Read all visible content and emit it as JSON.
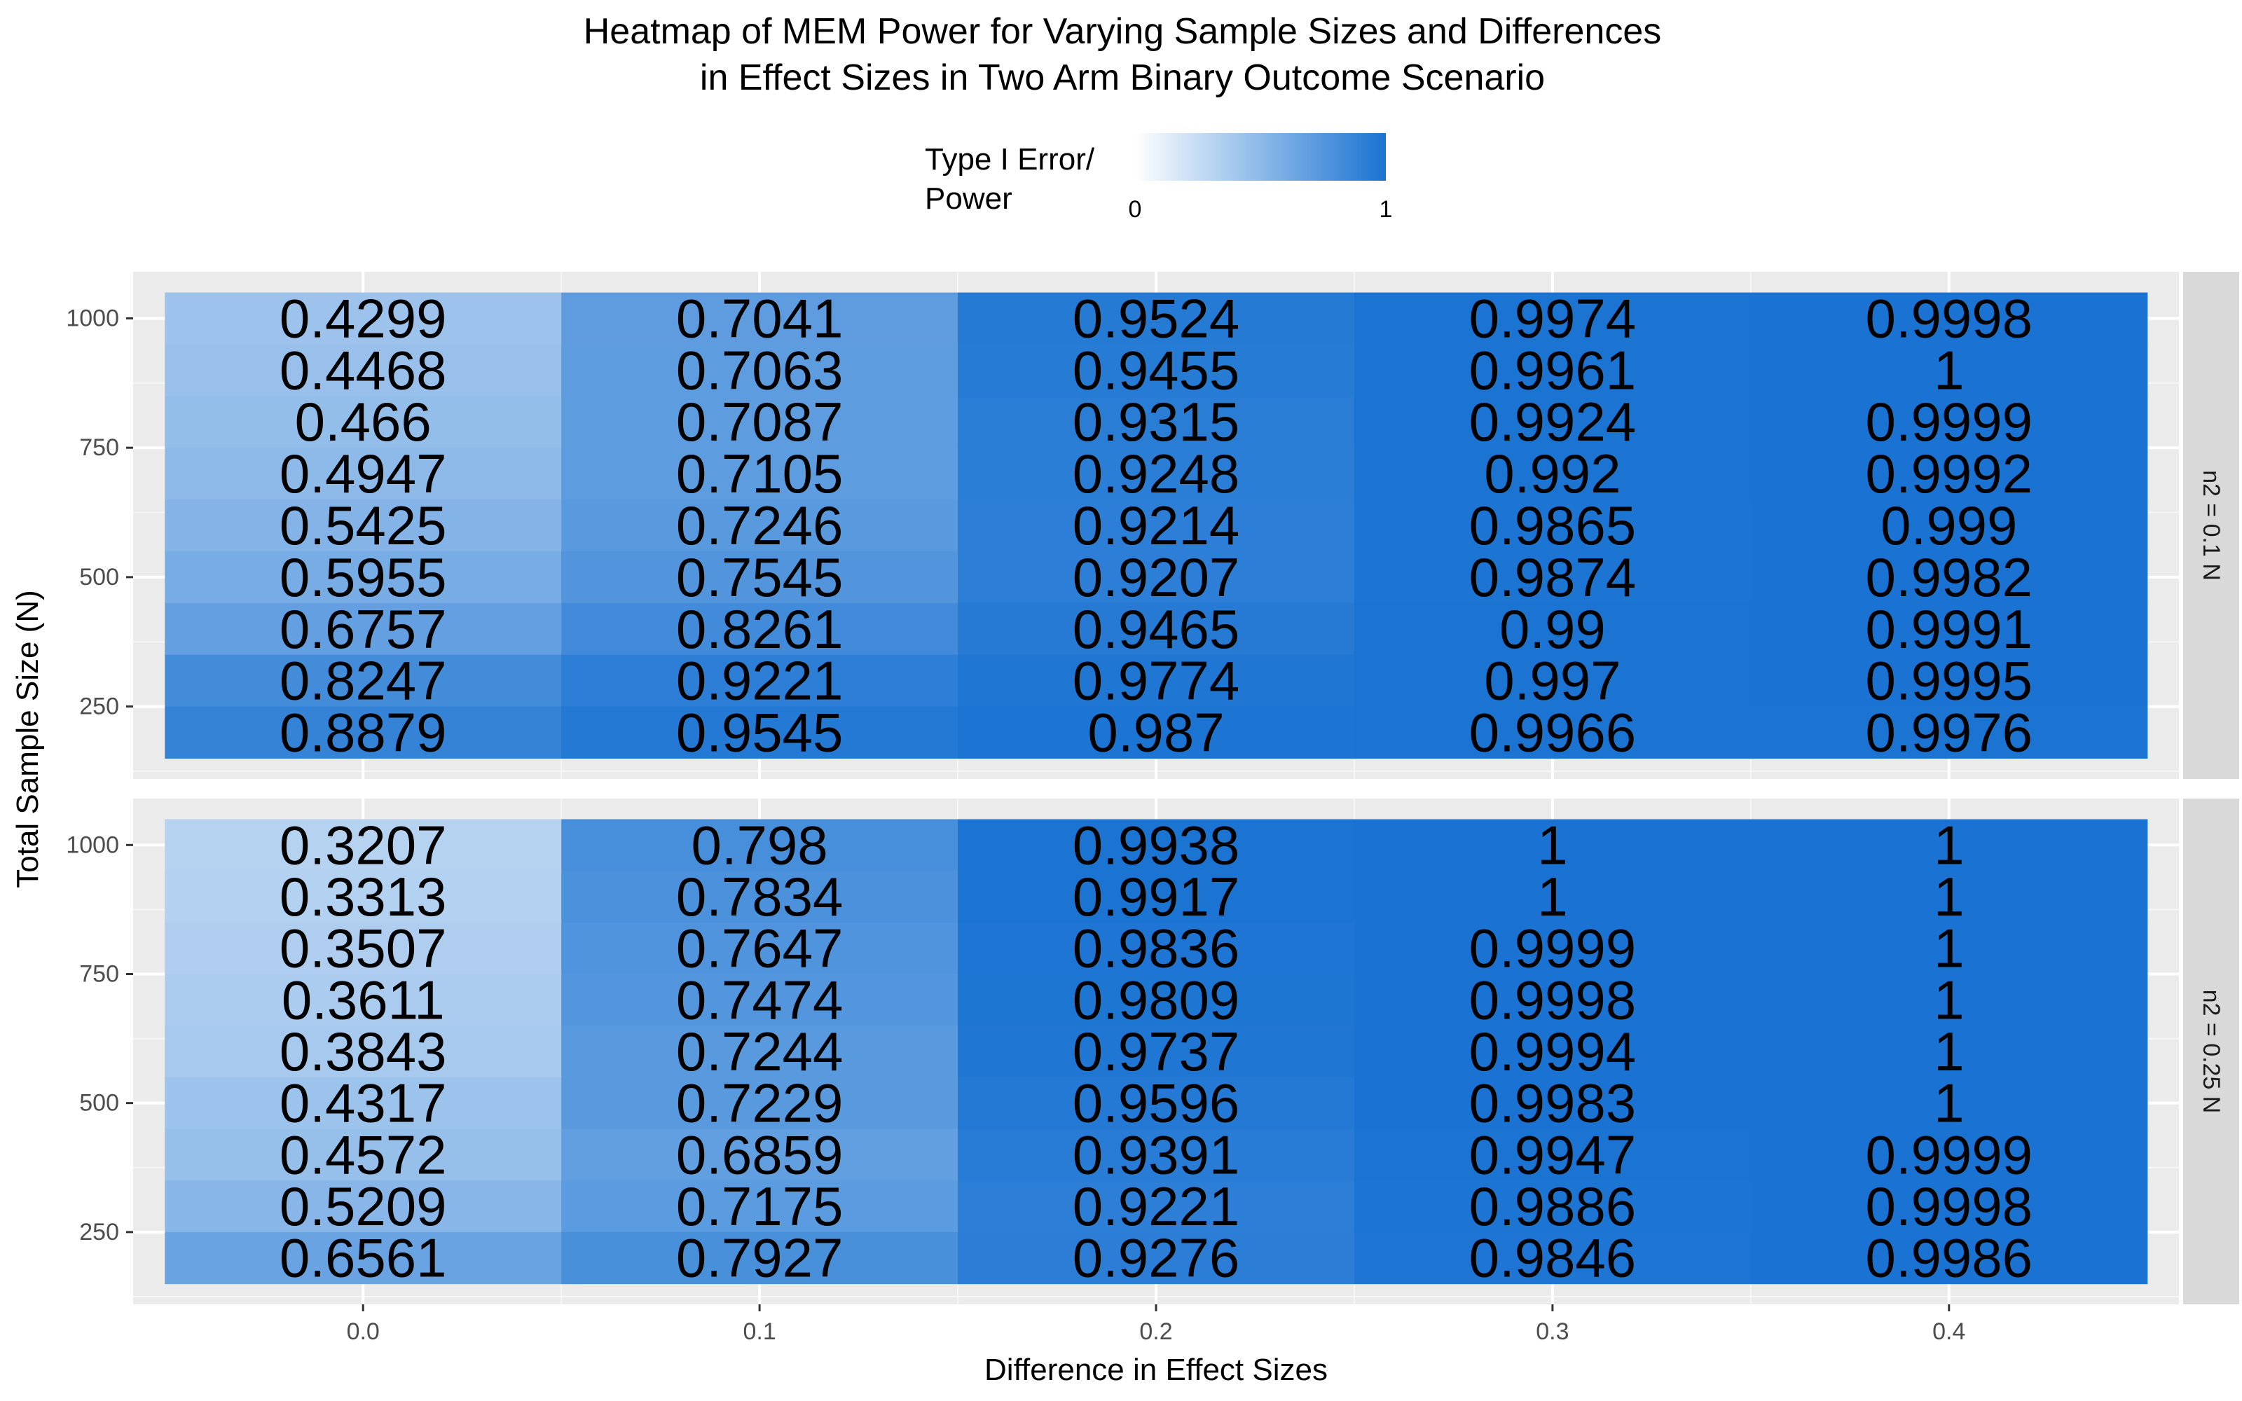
{
  "chart_data": {
    "type": "heatmap",
    "title_lines": [
      "Heatmap of MEM Power for Varying Sample Sizes and Differences",
      "in Effect Sizes in Two Arm Binary Outcome Scenario"
    ],
    "xlabel": "Difference in Effect Sizes",
    "ylabel": "Total Sample Size (N)",
    "x": [
      0.0,
      0.1,
      0.2,
      0.3,
      0.4
    ],
    "x_tick_labels": [
      "0.0",
      "0.1",
      "0.2",
      "0.3",
      "0.4"
    ],
    "y": [
      1000,
      900,
      800,
      700,
      600,
      500,
      400,
      300,
      200
    ],
    "y_ticks": [
      250,
      500,
      750,
      1000
    ],
    "y_tick_labels": [
      "250",
      "500",
      "750",
      "1000"
    ],
    "xlim": [
      -0.058,
      0.458
    ],
    "ylim": [
      110,
      1090
    ],
    "legend": {
      "title_lines": [
        "Type I Error/",
        "Power"
      ],
      "min_label": "0",
      "max_label": "1",
      "low_color": "#ffffff",
      "high_color": "#1a73d2",
      "placement": "top"
    },
    "panels": [
      {
        "label": "n2 = 0.1 N",
        "values": [
          [
            "0.4299",
            "0.7041",
            "0.9524",
            "0.9974",
            "0.9998"
          ],
          [
            "0.4468",
            "0.7063",
            "0.9455",
            "0.9961",
            "1"
          ],
          [
            "0.466",
            "0.7087",
            "0.9315",
            "0.9924",
            "0.9999"
          ],
          [
            "0.4947",
            "0.7105",
            "0.9248",
            "0.992",
            "0.9992"
          ],
          [
            "0.5425",
            "0.7246",
            "0.9214",
            "0.9865",
            "0.999"
          ],
          [
            "0.5955",
            "0.7545",
            "0.9207",
            "0.9874",
            "0.9982"
          ],
          [
            "0.6757",
            "0.8261",
            "0.9465",
            "0.99",
            "0.9991"
          ],
          [
            "0.8247",
            "0.9221",
            "0.9774",
            "0.997",
            "0.9995"
          ],
          [
            "0.8879",
            "0.9545",
            "0.987",
            "0.9966",
            "0.9976"
          ]
        ]
      },
      {
        "label": "n2 = 0.25 N",
        "values": [
          [
            "0.3207",
            "0.798",
            "0.9938",
            "1",
            "1"
          ],
          [
            "0.3313",
            "0.7834",
            "0.9917",
            "1",
            "1"
          ],
          [
            "0.3507",
            "0.7647",
            "0.9836",
            "0.9999",
            "1"
          ],
          [
            "0.3611",
            "0.7474",
            "0.9809",
            "0.9998",
            "1"
          ],
          [
            "0.3843",
            "0.7244",
            "0.9737",
            "0.9994",
            "1"
          ],
          [
            "0.4317",
            "0.7229",
            "0.9596",
            "0.9983",
            "1"
          ],
          [
            "0.4572",
            "0.6859",
            "0.9391",
            "0.9947",
            "0.9999"
          ],
          [
            "0.5209",
            "0.7175",
            "0.9221",
            "0.9886",
            "0.9998"
          ],
          [
            "0.6561",
            "0.7927",
            "0.9276",
            "0.9846",
            "0.9986"
          ]
        ]
      }
    ],
    "colors": {
      "panel_background": "#ebebeb",
      "grid_major": "#ffffff",
      "strip_background": "#d9d9d9",
      "cell_text": "#000000"
    }
  }
}
